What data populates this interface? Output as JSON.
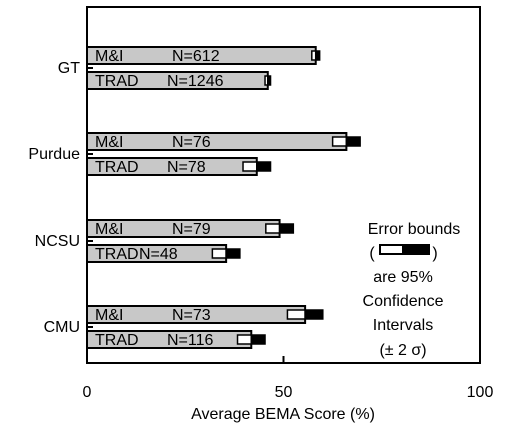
{
  "chart_data": {
    "type": "bar",
    "orientation": "horizontal",
    "xlabel": "Average BEMA Score (%)",
    "xlim": [
      0,
      100
    ],
    "xticks": [
      0,
      50,
      100
    ],
    "grid": false,
    "groups": [
      {
        "name": "GT",
        "bars": [
          {
            "label": "M&I",
            "n_text": "N=612",
            "value": 58.2,
            "error": 1.0
          },
          {
            "label": "TRAD",
            "n_text": "N=1246",
            "value": 46.0,
            "error": 0.7
          }
        ]
      },
      {
        "name": "Purdue",
        "bars": [
          {
            "label": "M&I",
            "n_text": "N=76",
            "value": 66.0,
            "error": 3.5
          },
          {
            "label": "TRAD",
            "n_text": "N=78",
            "value": 43.2,
            "error": 3.5
          }
        ]
      },
      {
        "name": "NCSU",
        "bars": [
          {
            "label": "M&I",
            "n_text": "N=79",
            "value": 49.0,
            "error": 3.5
          },
          {
            "label": "TRAD",
            "n_text": "N=48",
            "value": 35.4,
            "error": 3.5
          }
        ]
      },
      {
        "name": "CMU",
        "bars": [
          {
            "label": "M&I",
            "n_text": "N=73",
            "value": 55.5,
            "error": 4.5
          },
          {
            "label": "TRAD",
            "n_text": "N=116",
            "value": 41.8,
            "error": 3.5
          }
        ]
      }
    ],
    "legend": {
      "placement": "right",
      "lines": [
        "Error bounds",
        "(",
        ")",
        "are 95%",
        "Confidence",
        "Intervals",
        "(± 2 σ)"
      ]
    },
    "colors": {
      "bar_fill": "#c8c8c8",
      "bar_stroke": "#000000",
      "error_lower": "#ffffff",
      "error_upper": "#000000"
    }
  }
}
